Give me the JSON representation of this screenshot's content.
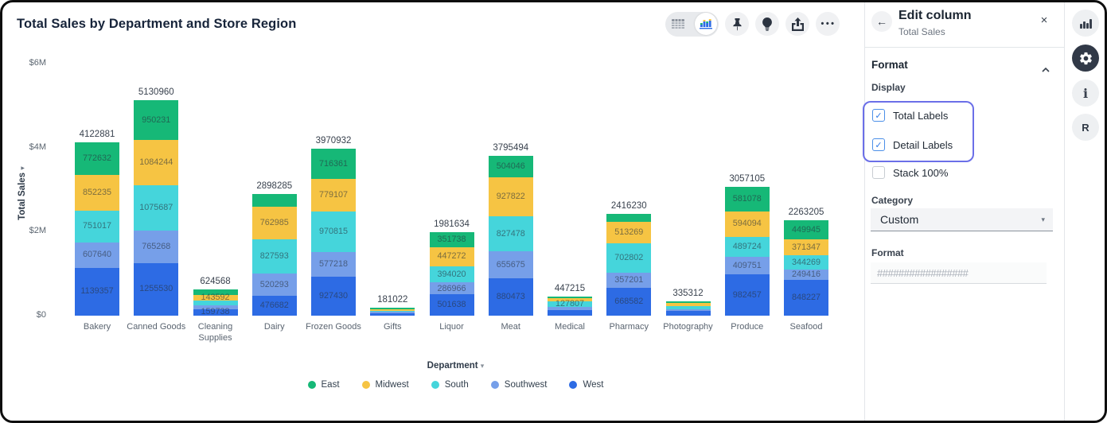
{
  "header": {
    "title": "Total Sales by Department and Store Region"
  },
  "toolbar": {
    "view_toggle": {
      "options": [
        "table-view",
        "chart-view"
      ],
      "selected": "chart-view"
    },
    "buttons": [
      "pin",
      "lightbulb",
      "export",
      "more"
    ]
  },
  "chart_data": {
    "type": "bar",
    "stacked": true,
    "title": "Total Sales by Department and Store Region",
    "xlabel": "Department",
    "ylabel": "Total Sales",
    "xlabel_caret": "▾",
    "ylabel_caret": "▾",
    "y_ticks": [
      "$0",
      "$2M",
      "$4M",
      "$6M"
    ],
    "ylim": [
      0,
      6000000
    ],
    "grid": false,
    "legend_position": "bottom",
    "legend": [
      "East",
      "Midwest",
      "South",
      "Southwest",
      "West"
    ],
    "legend_colors": {
      "East": "#16b877",
      "Midwest": "#f6c443",
      "South": "#45d5db",
      "Southwest": "#769fe9",
      "West": "#2d6be4"
    },
    "categories": [
      "Bakery",
      "Canned Goods",
      "Cleaning Supplies",
      "Dairy",
      "Frozen Goods",
      "Gifts",
      "Liquor",
      "Meat",
      "Medical",
      "Pharmacy",
      "Photography",
      "Produce",
      "Seafood"
    ],
    "totals": [
      4122881,
      5130960,
      624568,
      2898285,
      3970932,
      181022,
      1981634,
      3795494,
      447215,
      2416230,
      335312,
      3057105,
      2263205
    ],
    "series": [
      {
        "name": "West",
        "color": "#2d6be4",
        "values": [
          1139357,
          1255530,
          159738,
          476682,
          927430,
          65022,
          501638,
          880473,
          130000,
          668582,
          110312,
          982457,
          848227
        ]
      },
      {
        "name": "Southwest",
        "color": "#769fe9",
        "values": [
          607640,
          765268,
          95238,
          520293,
          577218,
          25000,
          286966,
          655675,
          75000,
          357201,
          50000,
          409751,
          249416
        ]
      },
      {
        "name": "South",
        "color": "#45d5db",
        "values": [
          751017,
          1075687,
          96000,
          827593,
          970815,
          28000,
          394020,
          827478,
          127807,
          702802,
          65000,
          489724,
          344269
        ]
      },
      {
        "name": "Midwest",
        "color": "#f6c443",
        "values": [
          852235,
          1084244,
          143592,
          762985,
          779107,
          35000,
          447272,
          927822,
          75000,
          513269,
          85000,
          594094,
          371347
        ]
      },
      {
        "name": "East",
        "color": "#16b877",
        "values": [
          772632,
          950231,
          130000,
          310732,
          716361,
          28000,
          351738,
          504046,
          39408,
          174376,
          25000,
          581078,
          449945
        ]
      }
    ],
    "visible_detail_labels": {
      "Bakery": [
        772632,
        852235,
        751017,
        607640,
        1139357
      ],
      "Canned Goods": [
        950231,
        1084244,
        1075687,
        765268,
        1255530
      ],
      "Cleaning Supplies": [
        143592,
        159738
      ],
      "Dairy": [
        762985,
        827593,
        520293,
        476682
      ],
      "Frozen Goods": [
        716361,
        779107,
        970815,
        577218,
        927430
      ],
      "Gifts": [],
      "Liquor": [
        351738,
        447272,
        394020,
        286966,
        501638
      ],
      "Meat": [
        504046,
        927822,
        827478,
        655675,
        880473
      ],
      "Medical": [
        127807
      ],
      "Pharmacy": [
        513269,
        702802,
        357201,
        668582
      ],
      "Photography": [],
      "Produce": [
        581078,
        594094,
        489724,
        409751,
        982457
      ],
      "Seafood": [
        449945,
        371347,
        344269,
        249416,
        848227
      ]
    }
  },
  "panel": {
    "title": "Edit column",
    "subtitle": "Total Sales",
    "close_glyph": "×",
    "back_glyph": "←",
    "section": "Format",
    "display_label": "Display",
    "checkboxes": [
      {
        "label": "Total Labels",
        "checked": true
      },
      {
        "label": "Detail Labels",
        "checked": true
      },
      {
        "label": "Stack 100%",
        "checked": false
      }
    ],
    "highlight_color": "#6b6fe8",
    "category_label": "Category",
    "category_value": "Custom",
    "format_label": "Format",
    "format_placeholder": "#################"
  },
  "rail": {
    "icons": [
      "chart-panel",
      "settings",
      "info",
      "r-logo"
    ],
    "active": "settings",
    "r_glyph": "R",
    "info_glyph": "i"
  }
}
